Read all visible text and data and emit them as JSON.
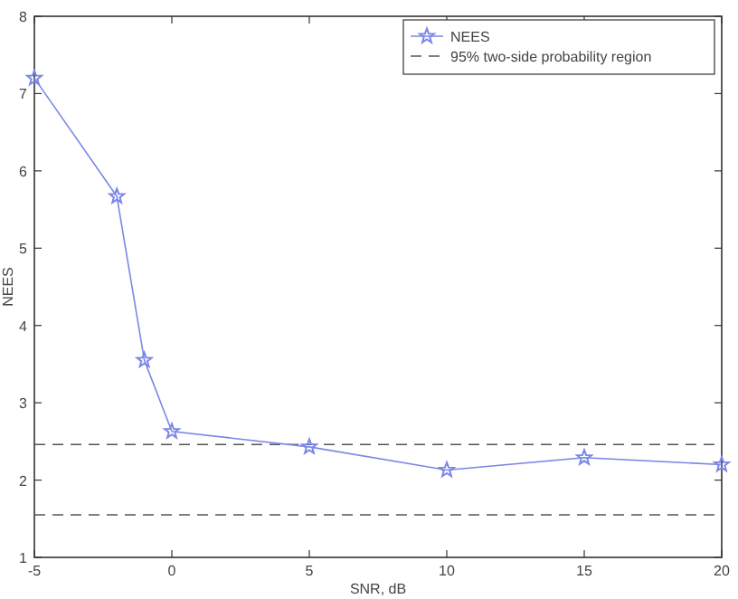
{
  "chart_data": {
    "type": "line",
    "xlabel": "SNR, dB",
    "ylabel": "NEES",
    "x": [
      -5,
      -2,
      -1,
      0,
      5,
      10,
      15,
      20
    ],
    "series": [
      {
        "name": "NEES",
        "color": "#7b87e6",
        "values": [
          7.2,
          5.67,
          3.55,
          2.63,
          2.43,
          2.13,
          2.29,
          2.2
        ]
      }
    ],
    "xlim": [
      -5,
      20
    ],
    "xticks": [
      -5,
      0,
      5,
      10,
      15,
      20
    ],
    "ylim": [
      1,
      8
    ],
    "yticks": [
      1,
      2,
      3,
      4,
      5,
      6,
      7,
      8
    ],
    "ref_lines": [
      {
        "axis": "y",
        "value": 2.46,
        "label": "95% two-side probability region",
        "color": "#555555",
        "line_style": "dashed"
      },
      {
        "axis": "y",
        "value": 1.55,
        "color": "#555555",
        "line_style": "dashed"
      }
    ],
    "marker": "star",
    "line_style": "solid",
    "grid": false,
    "legend": "top right"
  }
}
